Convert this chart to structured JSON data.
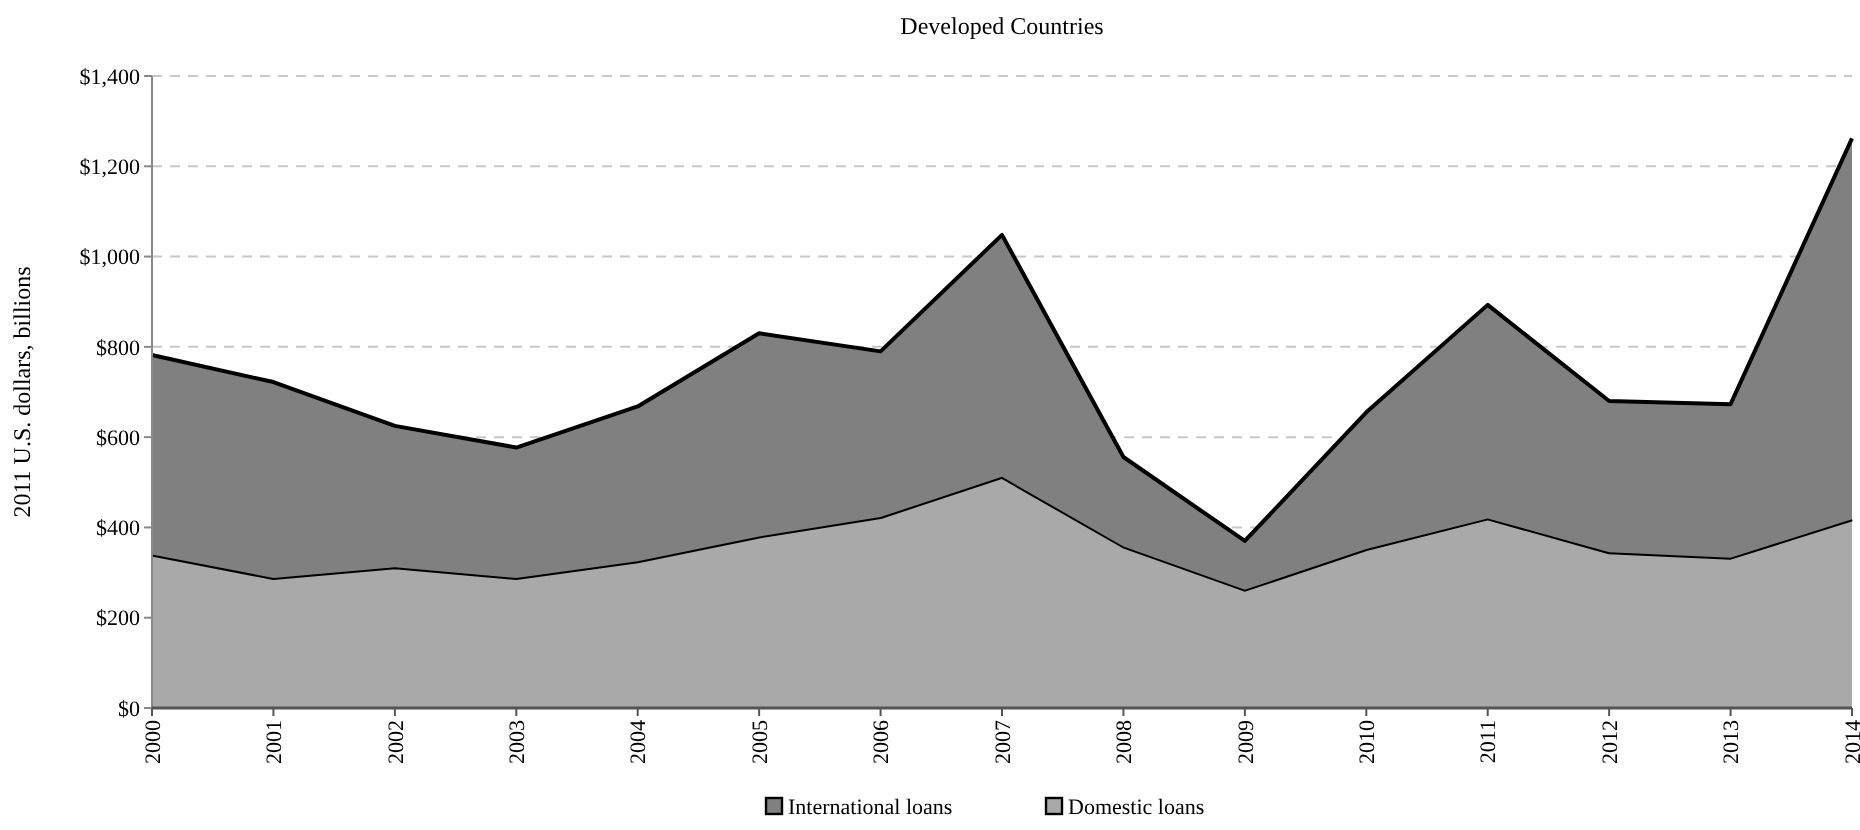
{
  "chart_data": {
    "type": "area",
    "title": "Developed Countries",
    "ylabel": "2011 U.S. dollars, billions",
    "categories": [
      "2000",
      "2001",
      "2002",
      "2003",
      "2004",
      "2005",
      "2006",
      "2007",
      "2008",
      "2009",
      "2010",
      "2011",
      "2012",
      "2013",
      "2014"
    ],
    "stacked": true,
    "series": [
      {
        "name": "Domestic loans",
        "color": "#a9a9a9",
        "values": [
          340,
          288,
          312,
          288,
          325,
          380,
          423,
          512,
          358,
          262,
          352,
          420,
          345,
          333,
          418
        ]
      },
      {
        "name": "International loans",
        "color": "#808080",
        "values": [
          442,
          434,
          313,
          289,
          343,
          450,
          367,
          536,
          198,
          108,
          303,
          473,
          335,
          340,
          844
        ]
      }
    ],
    "ylim": [
      0,
      1400
    ],
    "yticks": [
      {
        "value": 0,
        "label": "$0"
      },
      {
        "value": 200,
        "label": "$200"
      },
      {
        "value": 400,
        "label": "$400"
      },
      {
        "value": 600,
        "label": "$600"
      },
      {
        "value": 800,
        "label": "$800"
      },
      {
        "value": 1000,
        "label": "$1,000"
      },
      {
        "value": 1200,
        "label": "$1,200"
      },
      {
        "value": 1400,
        "label": "$1,400"
      }
    ],
    "grid": "y",
    "legend": "bottom"
  }
}
